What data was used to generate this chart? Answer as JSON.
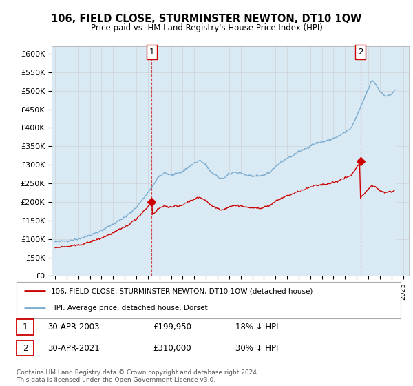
{
  "title": "106, FIELD CLOSE, STURMINSTER NEWTON, DT10 1QW",
  "subtitle": "Price paid vs. HM Land Registry's House Price Index (HPI)",
  "ylabel_ticks": [
    "£0",
    "£50K",
    "£100K",
    "£150K",
    "£200K",
    "£250K",
    "£300K",
    "£350K",
    "£400K",
    "£450K",
    "£500K",
    "£550K",
    "£600K"
  ],
  "ytick_values": [
    0,
    50000,
    100000,
    150000,
    200000,
    250000,
    300000,
    350000,
    400000,
    450000,
    500000,
    550000,
    600000
  ],
  "xlim_start": 1994.7,
  "xlim_end": 2025.5,
  "ylim": [
    0,
    620000
  ],
  "marker1_x": 2003.33,
  "marker1_y": 199950,
  "marker2_x": 2021.33,
  "marker2_y": 310000,
  "sale1_date": "30-APR-2003",
  "sale1_price": "£199,950",
  "sale1_hpi": "18% ↓ HPI",
  "sale2_date": "30-APR-2021",
  "sale2_price": "£310,000",
  "sale2_hpi": "30% ↓ HPI",
  "legend_line1": "106, FIELD CLOSE, STURMINSTER NEWTON, DT10 1QW (detached house)",
  "legend_line2": "HPI: Average price, detached house, Dorset",
  "footer": "Contains HM Land Registry data © Crown copyright and database right 2024.\nThis data is licensed under the Open Government Licence v3.0.",
  "line_red_color": "#cc0000",
  "line_blue_color": "#7aabcf",
  "fill_blue_color": "#daeaf5",
  "background_color": "#ffffff",
  "grid_color": "#cccccc"
}
